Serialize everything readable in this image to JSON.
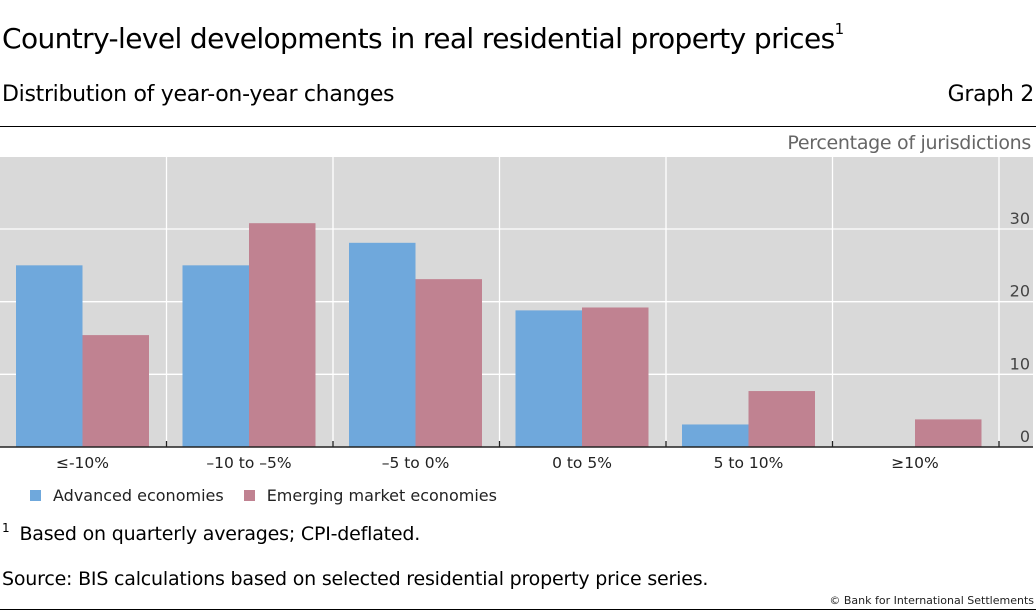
{
  "header": {
    "title": "Country-level developments in real residential property prices",
    "title_footnote_marker": "1",
    "subtitle": "Distribution of year-on-year changes",
    "graph_number": "Graph 2",
    "unit_label": "Percentage of jurisdictions"
  },
  "chart_data": {
    "type": "bar",
    "title": "Country-level developments in real residential property prices",
    "subtitle": "Distribution of year-on-year changes",
    "xlabel": "",
    "ylabel": "Percentage of jurisdictions",
    "categories": [
      "≤-10%",
      "–10 to –5%",
      "–5 to 0%",
      "0 to 5%",
      "5 to 10%",
      "≥10%"
    ],
    "series": [
      {
        "name": "Advanced economies",
        "color": "#6fa8dc",
        "values": [
          25.0,
          25.0,
          28.1,
          18.8,
          3.1,
          0.0
        ]
      },
      {
        "name": "Emerging market economies",
        "color": "#c08291",
        "values": [
          15.4,
          30.8,
          23.1,
          19.2,
          7.7,
          3.8
        ]
      }
    ],
    "ylim": [
      0,
      40
    ],
    "yticks": [
      0,
      10,
      20,
      30
    ],
    "y_axis_side": "right",
    "grid": true,
    "background": "#d9d9d9",
    "legend_position": "bottom-left"
  },
  "footer": {
    "footnote_marker": "1",
    "footnote": "Based on quarterly averages; CPI-deflated.",
    "source": "Source: BIS calculations based on selected residential property price series.",
    "copyright": "© Bank for International Settlements"
  }
}
